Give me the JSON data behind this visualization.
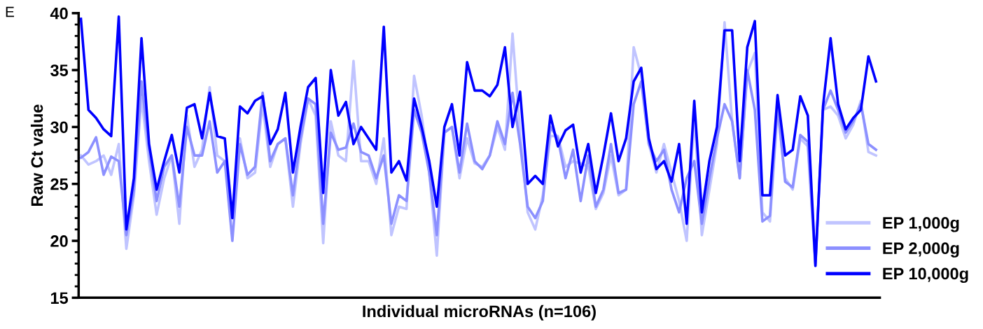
{
  "chart_data": {
    "type": "line",
    "xlabel": "Individual microRNAs (n=106)",
    "ylabel": "Raw Ct value",
    "annotations": [
      "E"
    ],
    "categories": [
      null,
      null,
      null,
      null,
      null,
      null,
      null,
      null,
      null,
      null,
      null,
      null,
      null,
      null,
      null,
      null,
      null,
      null,
      null,
      null,
      null,
      null,
      null,
      null,
      null,
      null,
      null,
      null,
      null,
      null,
      null,
      null,
      null,
      null,
      null,
      null,
      null,
      null,
      null,
      null,
      null,
      null,
      null,
      null,
      null,
      null,
      null,
      null,
      null,
      null,
      null,
      null,
      null,
      null,
      null,
      null,
      null,
      null,
      null,
      null,
      null,
      null,
      null,
      null,
      null,
      null,
      null,
      null,
      null,
      null,
      null,
      null,
      null,
      null,
      null,
      null,
      null,
      null,
      null,
      null,
      null,
      null,
      null,
      null,
      null,
      null,
      null,
      null,
      null,
      null,
      null,
      null,
      null,
      null,
      null,
      null,
      null,
      null,
      null,
      null,
      null,
      null,
      null,
      null,
      null,
      null
    ],
    "ylim": [
      15,
      40
    ],
    "yticks": [
      15,
      20,
      25,
      30,
      35,
      40
    ],
    "grid": false,
    "legend": "bottom right",
    "marker": "none",
    "line_style": "solid",
    "series": [
      {
        "name": "EP 1,000g",
        "color": "#c0c4ff",
        "values": [
          27.5,
          26.7,
          27.0,
          27.5,
          25.8,
          28.5,
          19.3,
          24.0,
          32.5,
          27.0,
          22.3,
          25.5,
          27.5,
          21.5,
          31.0,
          26.5,
          28.0,
          33.5,
          27.5,
          27.0,
          22.5,
          29.0,
          25.5,
          26.0,
          32.0,
          26.5,
          28.5,
          29.0,
          23.0,
          28.5,
          32.5,
          31.0,
          19.8,
          30.5,
          27.5,
          27.0,
          35.8,
          27.0,
          27.0,
          25.0,
          29.0,
          20.5,
          23.0,
          22.8,
          34.5,
          31.0,
          26.0,
          18.7,
          29.5,
          30.0,
          25.5,
          29.0,
          26.8,
          26.5,
          27.5,
          30.0,
          28.0,
          38.2,
          29.5,
          22.5,
          21.0,
          24.0,
          29.2,
          29.2,
          26.5,
          27.0,
          26.8,
          26.5,
          22.8,
          24.2,
          27.5,
          24.0,
          24.5,
          37.0,
          34.5,
          28.5,
          26.0,
          28.5,
          26.0,
          23.5,
          20.0,
          31.0,
          20.5,
          24.5,
          28.5,
          39.2,
          30.5,
          25.5,
          34.8,
          36.5,
          22.5,
          21.7,
          31.5,
          25.5,
          24.5,
          29.0,
          28.3,
          17.8,
          31.5,
          31.8,
          31.0,
          29.0,
          30.2,
          32.3,
          27.8,
          27.5
        ]
      },
      {
        "name": "EP 2,000g",
        "color": "#8c90ff",
        "values": [
          27.3,
          27.8,
          29.1,
          25.8,
          27.4,
          27.0,
          20.5,
          24.5,
          34.0,
          28.0,
          23.5,
          26.5,
          27.5,
          23.0,
          30.0,
          27.5,
          27.5,
          30.5,
          26.0,
          27.0,
          20.0,
          28.5,
          25.8,
          26.5,
          33.0,
          27.0,
          28.5,
          29.0,
          24.0,
          29.0,
          32.5,
          32.0,
          21.5,
          29.5,
          28.0,
          28.2,
          30.3,
          27.8,
          27.5,
          25.5,
          27.5,
          21.5,
          24.0,
          23.5,
          31.5,
          29.5,
          26.0,
          20.5,
          29.5,
          30.0,
          26.0,
          30.3,
          27.0,
          26.3,
          27.5,
          30.5,
          28.5,
          33.0,
          28.5,
          23.0,
          22.0,
          23.5,
          30.0,
          29.0,
          25.5,
          28.0,
          23.5,
          27.5,
          23.0,
          24.5,
          28.5,
          24.2,
          24.5,
          32.0,
          34.0,
          28.5,
          27.0,
          28.0,
          24.5,
          22.5,
          25.5,
          27.0,
          21.5,
          25.5,
          29.0,
          32.0,
          30.5,
          25.5,
          35.0,
          31.5,
          21.7,
          22.2,
          32.0,
          25.2,
          24.7,
          29.3,
          28.7,
          18.0,
          31.5,
          33.2,
          31.5,
          29.5,
          30.5,
          32.0,
          28.5,
          28.0
        ]
      },
      {
        "name": "EP 10,000g",
        "color": "#0000ff",
        "values": [
          39.5,
          31.5,
          30.8,
          29.8,
          29.2,
          39.7,
          21.0,
          25.5,
          37.8,
          28.5,
          24.5,
          27.0,
          29.3,
          26.0,
          31.7,
          32.0,
          29.0,
          33.0,
          29.2,
          29.0,
          22.0,
          31.8,
          31.2,
          32.3,
          32.7,
          28.5,
          29.8,
          33.0,
          26.0,
          30.0,
          33.5,
          34.3,
          24.2,
          35.0,
          31.0,
          32.2,
          28.5,
          30.0,
          29.0,
          28.0,
          38.8,
          26.0,
          27.0,
          25.3,
          32.5,
          30.0,
          27.0,
          23.0,
          30.0,
          32.0,
          27.5,
          35.7,
          33.2,
          33.2,
          32.7,
          33.7,
          37.0,
          30.0,
          33.1,
          25.0,
          25.7,
          25.0,
          31.0,
          28.3,
          29.7,
          30.2,
          26.0,
          28.5,
          24.2,
          27.5,
          31.2,
          27.0,
          29.0,
          34.0,
          35.2,
          29.0,
          26.3,
          27.0,
          25.2,
          28.5,
          21.5,
          32.3,
          22.5,
          27.0,
          30.0,
          38.5,
          38.5,
          27.0,
          37.0,
          39.3,
          24.0,
          24.0,
          32.8,
          27.5,
          28.0,
          32.7,
          31.0,
          17.8,
          31.8,
          37.8,
          32.0,
          29.8,
          30.8,
          31.5,
          36.2,
          34.0
        ]
      }
    ]
  }
}
